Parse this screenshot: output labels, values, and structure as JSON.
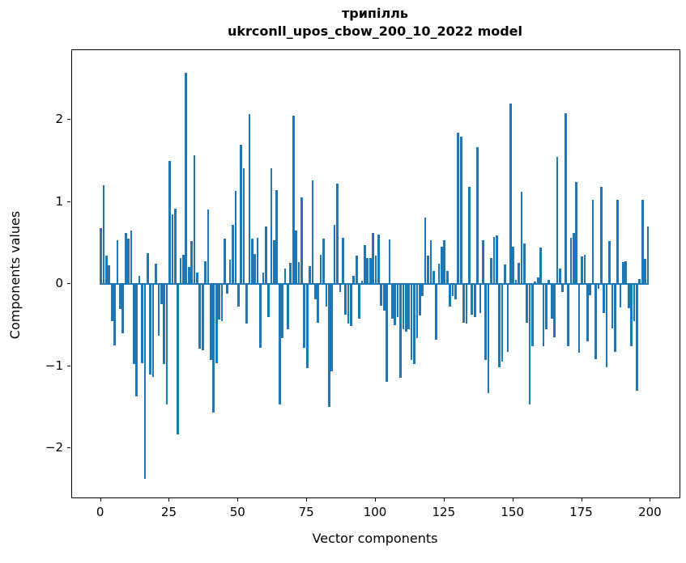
{
  "title": {
    "line1": "трипілль",
    "line2": "ukrconll_upos_cbow_200_10_2022 model"
  },
  "axes": {
    "xlabel": "Vector components",
    "ylabel": "Components values"
  },
  "colors": {
    "bar": "#1f77b4",
    "spine": "#000000",
    "background": "#ffffff"
  },
  "chart_data": {
    "type": "bar",
    "title": "трипілль — ukrconll_upos_cbow_200_10_2022 model",
    "xlabel": "Vector components",
    "ylabel": "Components values",
    "n_components": 200,
    "x_start": 0,
    "xlim": [
      -10.5,
      210.5
    ],
    "ylim": [
      -2.6,
      2.85
    ],
    "x_tick_values": [
      0,
      25,
      50,
      75,
      100,
      125,
      150,
      175,
      200
    ],
    "x_tick_labels": [
      "0",
      "25",
      "50",
      "75",
      "100",
      "125",
      "150",
      "175",
      "200"
    ],
    "y_tick_values": [
      2,
      1,
      0,
      -1,
      -2
    ],
    "y_tick_labels": [
      "2",
      "1",
      "0",
      "−1",
      "−2"
    ],
    "grid": false,
    "legend": false,
    "bar_color": "#1f77b4",
    "values": [
      0.68,
      1.2,
      0.35,
      0.23,
      -0.45,
      -0.75,
      0.53,
      -0.3,
      -0.6,
      0.62,
      0.55,
      0.65,
      -0.97,
      -1.37,
      0.1,
      -0.96,
      -2.37,
      0.38,
      -1.1,
      -1.13,
      0.25,
      -0.63,
      -0.24,
      -0.97,
      -1.47,
      1.5,
      0.85,
      0.92,
      -1.83,
      0.32,
      0.36,
      2.57,
      0.21,
      0.52,
      1.57,
      0.14,
      -0.79,
      -0.81,
      0.28,
      0.91,
      -0.92,
      -1.57,
      -0.96,
      -0.43,
      -0.45,
      0.55,
      -0.12,
      0.3,
      0.72,
      1.14,
      -0.27,
      1.7,
      1.41,
      -0.48,
      2.07,
      0.55,
      0.37,
      0.56,
      -0.78,
      0.14,
      0.7,
      -0.4,
      1.41,
      0.53,
      1.15,
      -1.47,
      -0.66,
      0.19,
      -0.55,
      0.26,
      2.05,
      0.65,
      0.27,
      1.06,
      -0.78,
      -1.02,
      0.22,
      1.26,
      -0.19,
      -0.47,
      0.36,
      0.55,
      -0.27,
      -1.5,
      -1.06,
      0.72,
      1.22,
      -0.1,
      0.56,
      -0.37,
      -0.48,
      -0.51,
      0.1,
      0.35,
      -0.42,
      0.04,
      0.47,
      0.32,
      0.32,
      0.62,
      0.35,
      0.6,
      -0.26,
      -0.32,
      -1.19,
      0.54,
      -0.42,
      -0.5,
      -0.4,
      -1.14,
      -0.55,
      -0.58,
      -0.55,
      -0.92,
      -0.97,
      -0.66,
      -0.38,
      -0.15,
      0.81,
      0.35,
      0.53,
      0.16,
      -0.68,
      0.25,
      0.46,
      0.53,
      0.16,
      -0.27,
      -0.15,
      -0.19,
      1.84,
      1.8,
      -0.47,
      -0.48,
      1.18,
      -0.37,
      -0.4,
      1.67,
      -0.35,
      0.53,
      -0.92,
      -1.33,
      0.32,
      0.57,
      0.59,
      -1.01,
      -0.94,
      0.24,
      -0.83,
      2.2,
      0.46,
      0.05,
      0.26,
      1.13,
      0.49,
      -0.47,
      -1.47,
      -0.76,
      0.03,
      0.08,
      0.45,
      -0.76,
      -0.55,
      0.05,
      -0.42,
      -0.65,
      1.55,
      0.19,
      -0.1,
      2.08,
      -0.76,
      0.56,
      0.62,
      1.24,
      -0.84,
      0.34,
      0.36,
      -0.7,
      -0.14,
      1.03,
      -0.91,
      -0.06,
      1.18,
      -0.35,
      -1.01,
      0.52,
      -0.54,
      -0.83,
      1.03,
      -0.28,
      0.27,
      0.28,
      -0.29,
      -0.76,
      -0.45,
      -1.3,
      0.06,
      1.03,
      0.31,
      0.7
    ]
  }
}
